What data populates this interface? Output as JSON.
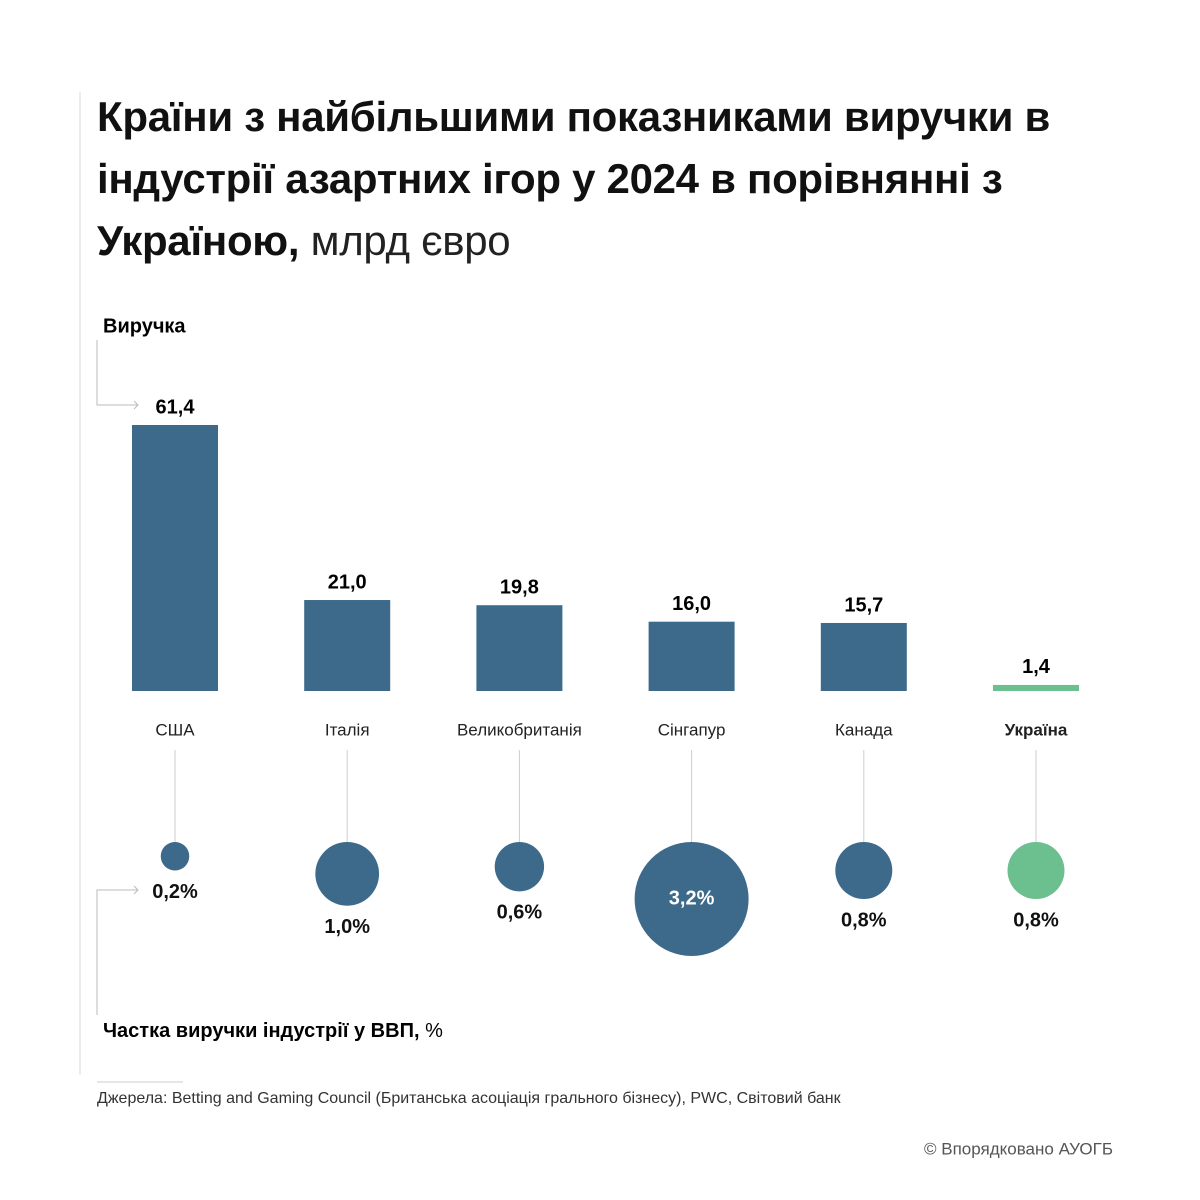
{
  "chart_data": {
    "type": "bar",
    "title": "Країни з найбільшими показниками виручки в індустрії азартних ігор у 2024 в порівнянні з Україною,",
    "unit": "млрд євро",
    "y_label": "Виручка",
    "bubble_label": "Частка виручки індустрії у ВВП,",
    "bubble_unit": "%",
    "categories": [
      "США",
      "Італія",
      "Великобританія",
      "Сінгапур",
      "Канада",
      "Україна"
    ],
    "series": [
      {
        "name": "Виручка",
        "colors": [
          "#3d6a8a",
          "#3d6a8a",
          "#3d6a8a",
          "#3d6a8a",
          "#3d6a8a",
          "#6cbf8e"
        ],
        "values": [
          61.4,
          21.0,
          19.8,
          16.0,
          15.7,
          1.4
        ],
        "value_labels": [
          "61,4",
          "21,0",
          "19,8",
          "16,0",
          "15,7",
          "1,4"
        ]
      },
      {
        "name": "Частка виручки індустрії у ВВП",
        "type": "bubble",
        "colors": [
          "#3d6a8a",
          "#3d6a8a",
          "#3d6a8a",
          "#3d6a8a",
          "#3d6a8a",
          "#6cbf8e"
        ],
        "values": [
          0.2,
          1.0,
          0.6,
          3.2,
          0.8,
          0.8
        ],
        "value_labels": [
          "0,2%",
          "1,0%",
          "0,6%",
          "3,2%",
          "0,8%",
          "0,8%"
        ]
      }
    ],
    "source": "Джерела: Betting and Gaming Council (Британська асоціація грального бізнесу), PWC, Світовий банк",
    "credit": "© Впорядковано АУОГБ"
  }
}
